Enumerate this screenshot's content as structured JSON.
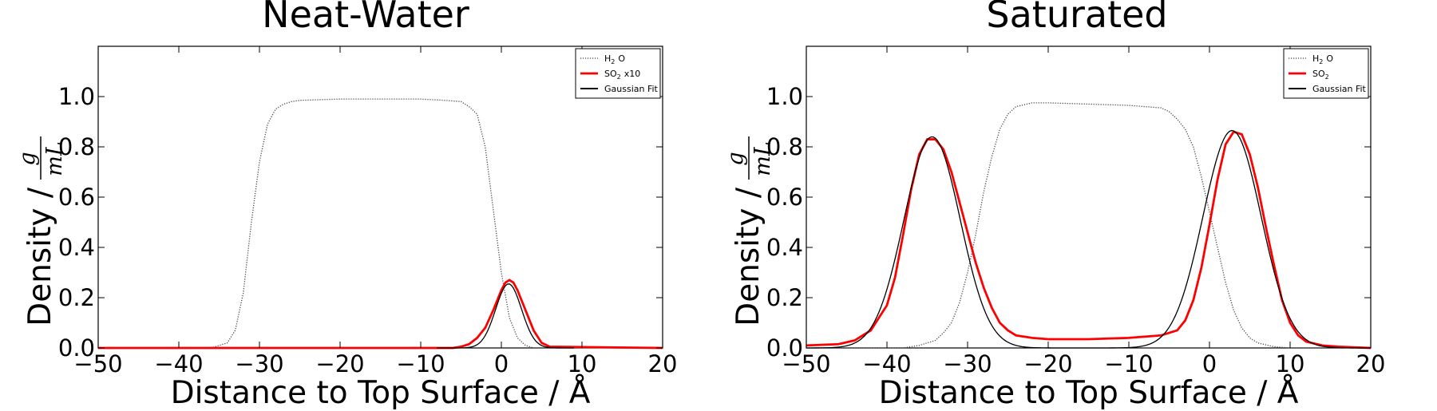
{
  "chart_data": [
    {
      "type": "line",
      "title": "Neat-Water",
      "xlabel": "Distance to Top Surface / Å",
      "ylabel": "Density /",
      "ylabel_unit_num": "g",
      "ylabel_unit_den": "mL",
      "xlim": [
        -50,
        20
      ],
      "ylim": [
        0,
        1.2
      ],
      "xticks": [
        "−50",
        "−40",
        "−30",
        "−20",
        "−10",
        "0",
        "10",
        "20"
      ],
      "yticks": [
        "0.0",
        "0.2",
        "0.4",
        "0.6",
        "0.8",
        "1.0"
      ],
      "legend_position": "top-right",
      "grid": false,
      "series": [
        {
          "name": "H₂O",
          "legend_main": "H",
          "legend_sub": "2",
          "legend_tail": "O",
          "style": "dotted",
          "color": "#444444",
          "x": [
            -50,
            -36,
            -34,
            -33,
            -32,
            -31,
            -30,
            -29,
            -28,
            -27,
            -26,
            -25,
            -20,
            -15,
            -10,
            -7,
            -5,
            -4,
            -3,
            -2,
            -1,
            0,
            1,
            2,
            3,
            4,
            6,
            20
          ],
          "y": [
            0,
            0,
            0.02,
            0.07,
            0.22,
            0.5,
            0.74,
            0.89,
            0.95,
            0.97,
            0.98,
            0.985,
            0.99,
            0.99,
            0.99,
            0.985,
            0.98,
            0.96,
            0.93,
            0.8,
            0.55,
            0.3,
            0.12,
            0.04,
            0.01,
            0,
            0,
            0
          ]
        },
        {
          "name": "SO₂ x10",
          "legend_main": "SO",
          "legend_sub": "2",
          "legend_tail": "x10",
          "style": "solid-thick",
          "color": "#ff0000",
          "x": [
            -50,
            -6,
            -5,
            -4,
            -3,
            -2,
            -1,
            0,
            0.5,
            1,
            1.5,
            2,
            3,
            4,
            5,
            6,
            20
          ],
          "y": [
            0,
            0,
            0.005,
            0.015,
            0.04,
            0.08,
            0.15,
            0.23,
            0.26,
            0.27,
            0.26,
            0.23,
            0.15,
            0.07,
            0.02,
            0.005,
            0
          ]
        },
        {
          "name": "Gaussian Fit",
          "legend_main": "Gaussian Fit",
          "legend_sub": "",
          "legend_tail": "",
          "style": "solid-thin",
          "color": "#000000",
          "fit": {
            "amplitude": 0.255,
            "center": 0.9,
            "sigma": 1.6,
            "x_start": -8,
            "x_end": 9
          }
        }
      ]
    },
    {
      "type": "line",
      "title": "Saturated",
      "xlabel": "Distance to Top Surface / Å",
      "ylabel": "Density /",
      "ylabel_unit_num": "g",
      "ylabel_unit_den": "mL",
      "xlim": [
        -50,
        20
      ],
      "ylim": [
        0,
        1.2
      ],
      "xticks": [
        "−50",
        "−40",
        "−30",
        "−20",
        "−10",
        "0",
        "10",
        "20"
      ],
      "yticks": [
        "0.0",
        "0.2",
        "0.4",
        "0.6",
        "0.8",
        "1.0"
      ],
      "legend_position": "top-right",
      "grid": false,
      "series": [
        {
          "name": "H₂O",
          "legend_main": "H",
          "legend_sub": "2",
          "legend_tail": "O",
          "style": "dotted",
          "color": "#444444",
          "x": [
            -50,
            -38,
            -36,
            -34,
            -33,
            -32,
            -31,
            -30,
            -29,
            -28,
            -27,
            -26,
            -25,
            -24,
            -22,
            -20,
            -15,
            -10,
            -6,
            -5,
            -4,
            -3,
            -2,
            -1,
            0,
            1,
            2,
            3,
            4,
            5,
            6,
            8,
            10,
            20
          ],
          "y": [
            0,
            0,
            0.01,
            0.03,
            0.06,
            0.1,
            0.18,
            0.3,
            0.45,
            0.62,
            0.76,
            0.87,
            0.93,
            0.96,
            0.975,
            0.975,
            0.97,
            0.965,
            0.955,
            0.94,
            0.91,
            0.87,
            0.8,
            0.68,
            0.54,
            0.4,
            0.26,
            0.15,
            0.08,
            0.04,
            0.02,
            0.005,
            0,
            0
          ]
        },
        {
          "name": "SO₂",
          "legend_main": "SO",
          "legend_sub": "2",
          "legend_tail": "",
          "style": "solid-thick",
          "color": "#ff0000",
          "x": [
            -50,
            -46,
            -44,
            -42,
            -40,
            -39,
            -38,
            -37,
            -36,
            -35,
            -34,
            -33,
            -32,
            -31,
            -30,
            -29,
            -28,
            -27,
            -26,
            -25,
            -24,
            -22,
            -20,
            -15,
            -10,
            -6,
            -4,
            -3,
            -2,
            -1,
            0,
            1,
            2,
            3,
            4,
            5,
            6,
            7,
            8,
            9,
            10,
            11,
            12,
            14,
            16,
            20
          ],
          "y": [
            0.01,
            0.015,
            0.03,
            0.07,
            0.17,
            0.28,
            0.45,
            0.63,
            0.77,
            0.83,
            0.83,
            0.79,
            0.7,
            0.58,
            0.46,
            0.34,
            0.24,
            0.16,
            0.1,
            0.07,
            0.05,
            0.04,
            0.035,
            0.035,
            0.04,
            0.05,
            0.07,
            0.11,
            0.19,
            0.32,
            0.49,
            0.67,
            0.81,
            0.86,
            0.85,
            0.77,
            0.64,
            0.48,
            0.33,
            0.19,
            0.1,
            0.05,
            0.025,
            0.01,
            0.005,
            0
          ]
        },
        {
          "name": "Gaussian Fit",
          "legend_main": "Gaussian Fit",
          "legend_sub": "",
          "legend_tail": "",
          "style": "solid-thin",
          "color": "#000000",
          "fit": {
            "amplitude": 0.84,
            "center": -34.4,
            "sigma": 3.5,
            "amplitude2": 0.865,
            "center2": 2.8,
            "sigma2": 3.6,
            "x_start": -50,
            "x_end": 20
          }
        }
      ]
    }
  ]
}
